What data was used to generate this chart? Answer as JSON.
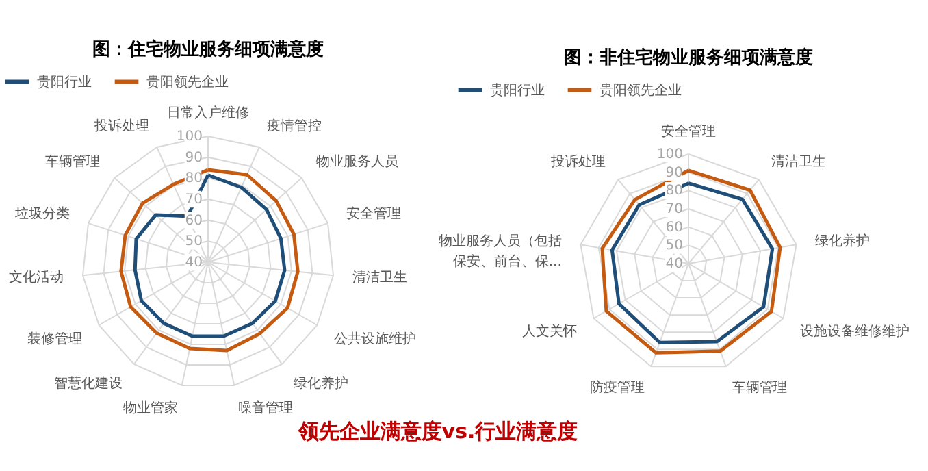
{
  "chart_data": [
    {
      "type": "radar",
      "title": "图：住宅物业服务细项满意度",
      "categories": [
        "日常入户维修",
        "疫情管控",
        "物业服务人员",
        "安全管理",
        "清洁卫生",
        "公共设施维护",
        "绿化养护",
        "噪音管理",
        "物业管家",
        "智慧化建设",
        "装修管理",
        "文化活动",
        "垃圾分类",
        "车辆管理",
        "投诉处理"
      ],
      "series": [
        {
          "name": "贵阳行业",
          "color": "#1f4e79",
          "values": [
            81.5,
            79,
            77.5,
            76.5,
            76.7,
            77,
            76,
            76,
            76,
            76,
            76.7,
            75,
            76,
            73.6,
            64
          ]
        },
        {
          "name": "贵阳领先企业",
          "color": "#c55a11",
          "values": [
            84,
            85.6,
            83.7,
            83,
            83,
            83.7,
            82,
            83,
            82,
            81.7,
            82.6,
            81.7,
            81.5,
            82,
            80.6
          ]
        }
      ],
      "ylim": [
        40,
        100
      ],
      "yticks": [
        40,
        50,
        60,
        70,
        80,
        90,
        100
      ],
      "grid": true,
      "legend": "top",
      "marker": "none",
      "line_style": "solid",
      "annotations": [
        "领先企业满意度vs.行业满意度"
      ]
    },
    {
      "type": "radar",
      "title": "图：非住宅物业服务细项满意度",
      "categories": [
        "安全管理",
        "清洁卫生",
        "绿化养护",
        "设施设备维修维护",
        "车辆管理",
        "防疫管理",
        "人文关怀",
        "物业服务人员（包括保安、前台、保...",
        "投诉处理"
      ],
      "series": [
        {
          "name": "贵阳行业",
          "color": "#1f4e79",
          "values": [
            84,
            86,
            86.7,
            87.5,
            85.5,
            86,
            84,
            82.5,
            82
          ]
        },
        {
          "name": "贵阳领先企业",
          "color": "#c55a11",
          "values": [
            91,
            92.5,
            91,
            92.5,
            91,
            92,
            92,
            88,
            85.7
          ]
        }
      ],
      "ylim": [
        40,
        100
      ],
      "yticks": [
        40,
        50,
        60,
        70,
        80,
        90,
        100
      ],
      "grid": true,
      "legend": "top",
      "marker": "none",
      "line_style": "solid"
    }
  ]
}
